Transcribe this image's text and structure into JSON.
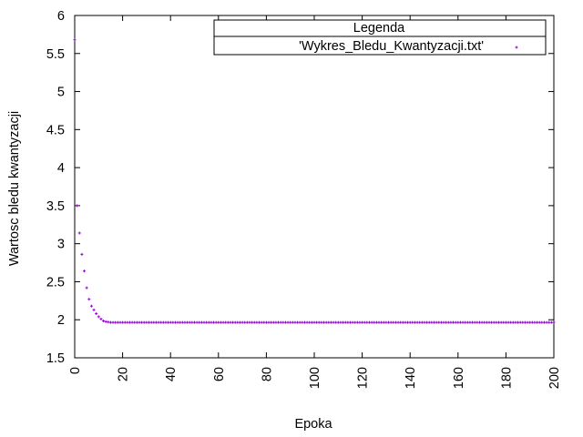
{
  "chart_data": {
    "type": "scatter",
    "title": "",
    "xlabel": "Epoka",
    "ylabel": "Wartosc bledu kwantyzacji",
    "xlim": [
      0,
      200
    ],
    "ylim": [
      1.5,
      6
    ],
    "xticks": [
      0,
      20,
      40,
      60,
      80,
      100,
      120,
      140,
      160,
      180,
      200
    ],
    "yticks": [
      1.5,
      2,
      2.5,
      3,
      3.5,
      4,
      4.5,
      5,
      5.5,
      6
    ],
    "grid": false,
    "legend": {
      "title": "Legenda",
      "position": "top-right"
    },
    "series": [
      {
        "name": "'Wykres_Bledu_Kwantyzacji.txt'",
        "color": "#9400d3",
        "marker": "plus",
        "points_head": [
          [
            0,
            5.68
          ],
          [
            1,
            3.5
          ],
          [
            2,
            3.14
          ],
          [
            3,
            2.86
          ],
          [
            4,
            2.64
          ],
          [
            5,
            2.42
          ],
          [
            6,
            2.27
          ],
          [
            7,
            2.18
          ],
          [
            8,
            2.13
          ],
          [
            9,
            2.08
          ],
          [
            10,
            2.04
          ],
          [
            11,
            2.01
          ],
          [
            12,
            1.985
          ],
          [
            13,
            1.975
          ],
          [
            14,
            1.97
          ]
        ],
        "plateau": {
          "from": 15,
          "to": 200,
          "step": 1,
          "value": 1.965
        }
      }
    ]
  }
}
